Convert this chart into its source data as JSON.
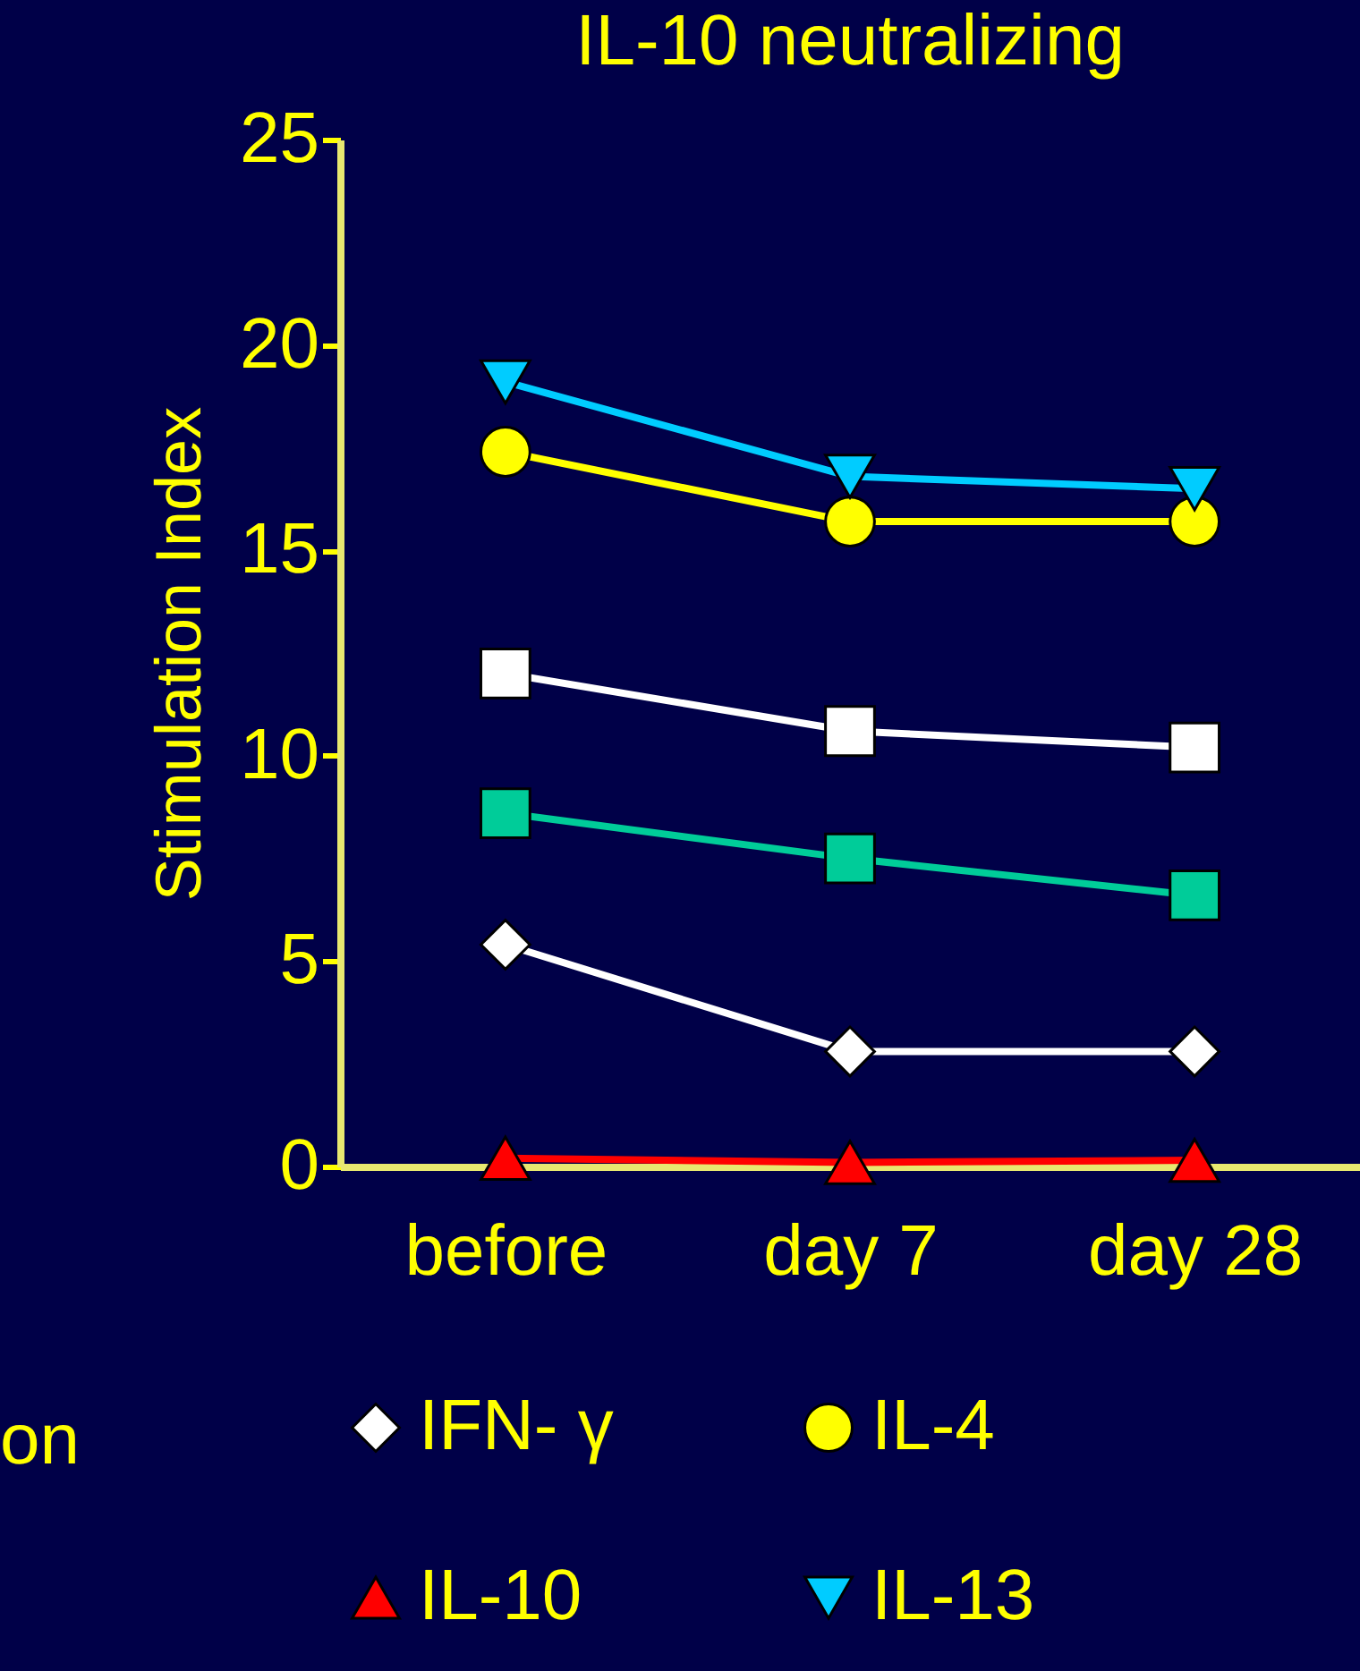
{
  "chart_data": {
    "type": "line",
    "title": "IL-10 neutralizing",
    "ylabel": "Stimulation Index",
    "categories": [
      "before",
      "day 7",
      "day 28"
    ],
    "ylim": [
      0,
      25
    ],
    "yticks": [
      0,
      5,
      10,
      15,
      20,
      25
    ],
    "grid": false,
    "legend": "bottom",
    "annotations": [
      "on"
    ],
    "series": [
      {
        "name": "IFN- γ",
        "color": "#ffffff",
        "marker": "diamond",
        "values": [
          5.4,
          2.8,
          2.8
        ]
      },
      {
        "name": "IL-4",
        "color": "#ffff00",
        "marker": "circle",
        "values": [
          17.4,
          15.7,
          15.7
        ]
      },
      {
        "name": "IL-10",
        "color": "#ff0000",
        "marker": "triangle",
        "values": [
          0.2,
          0.1,
          0.15
        ]
      },
      {
        "name": "IL-13",
        "color": "#00ccff",
        "marker": "triangle-down",
        "values": [
          19.1,
          16.8,
          16.5
        ]
      },
      {
        "color": "#ffffff",
        "marker": "square",
        "values": [
          12.0,
          10.6,
          10.2
        ]
      },
      {
        "color": "#00cc99",
        "marker": "square",
        "values": [
          8.6,
          7.5,
          6.6
        ]
      }
    ]
  }
}
